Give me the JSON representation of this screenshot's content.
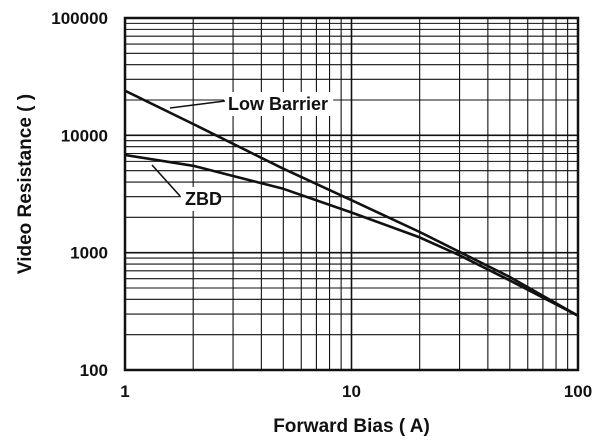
{
  "chart_data": {
    "type": "line",
    "xlabel": "Forward Bias (  A)",
    "ylabel": "Video Resistance (  )",
    "xscale": "log",
    "yscale": "log",
    "xlim": [
      1,
      100
    ],
    "ylim": [
      100,
      100000
    ],
    "grid": true,
    "x_ticks": [
      "1",
      "10",
      "100"
    ],
    "y_ticks": [
      "100000",
      "10000",
      "1000",
      "100"
    ],
    "series": [
      {
        "name": "Low Barrier",
        "x": [
          1,
          2,
          5,
          10,
          20,
          50,
          100
        ],
        "y": [
          24000,
          12500,
          5200,
          2800,
          1500,
          620,
          290
        ]
      },
      {
        "name": "ZBD",
        "x": [
          1,
          2,
          3,
          5,
          10,
          20,
          30,
          50,
          100
        ],
        "y": [
          6800,
          5500,
          4500,
          3500,
          2200,
          1350,
          950,
          580,
          290
        ]
      }
    ]
  }
}
